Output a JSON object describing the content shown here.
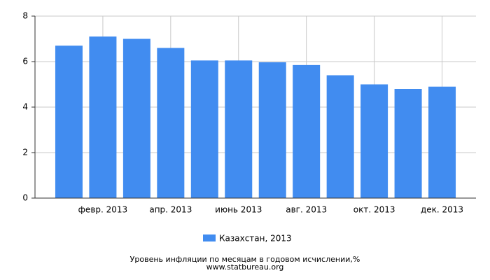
{
  "chart_data": {
    "type": "bar",
    "title": "Уровень инфляции по месяцам в годовом исчислении,%",
    "subtitle": "www.statbureau.org",
    "categories": [
      null,
      "февр. 2013",
      null,
      "апр. 2013",
      null,
      "июнь 2013",
      null,
      "авг. 2013",
      null,
      "окт. 2013",
      null,
      "дек. 2013"
    ],
    "series": [
      {
        "name": "Казахстан, 2013",
        "color": "#418cf0",
        "values": [
          6.7,
          7.1,
          7.0,
          6.6,
          6.05,
          6.05,
          5.97,
          5.85,
          5.4,
          5.0,
          4.8,
          4.9
        ]
      }
    ],
    "ylim": [
      0,
      8
    ],
    "yticks": [
      0,
      2,
      4,
      6,
      8
    ],
    "grid": true,
    "legend": "bottom"
  }
}
